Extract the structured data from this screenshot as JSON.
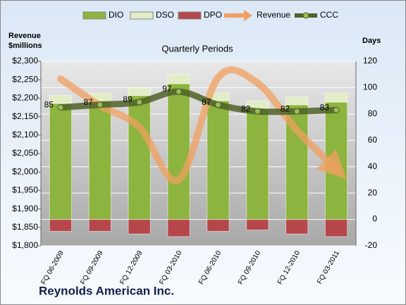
{
  "chart_data": {
    "type": "bar",
    "title": "Quarterly Periods",
    "company": "Reynolds American Inc.",
    "y_label": "Revenue $millions",
    "y2_label": "Days",
    "categories": [
      "FQ 06-2009",
      "FQ 09-2009",
      "FQ 12-2009",
      "FQ 03-2010",
      "FQ 06-2010",
      "FQ 09-2010",
      "FQ 12-2010",
      "FQ 03-2011"
    ],
    "series": [
      {
        "name": "DIO",
        "type": "bar",
        "axis": "y2",
        "color": "#8db43e",
        "values": [
          88,
          90,
          94,
          103,
          90,
          84,
          87,
          89
        ]
      },
      {
        "name": "DSO",
        "type": "bar",
        "axis": "y2",
        "color": "#e2edc6",
        "values": [
          6,
          6,
          6,
          7,
          6,
          6,
          6,
          7
        ]
      },
      {
        "name": "DPO",
        "type": "bar",
        "axis": "y2",
        "color": "#b5474b",
        "values": [
          -9,
          -9,
          -11,
          -13,
          -9,
          -8,
          -11,
          -13
        ]
      },
      {
        "name": "Revenue",
        "type": "line",
        "color": "#f0a060",
        "values": [
          2252,
          2180,
          2122,
          1979,
          2256,
          2241,
          2113,
          2008
        ]
      },
      {
        "name": "CCC",
        "type": "line",
        "axis": "y2",
        "color": "#4f6228",
        "values": [
          85,
          87,
          89,
          97,
          87,
          82,
          82,
          83
        ]
      }
    ],
    "ylim": [
      1800,
      2300
    ],
    "yticks": [
      {
        "value": 1800,
        "label": "$1,800"
      },
      {
        "value": 1850,
        "label": "$1,850"
      },
      {
        "value": 1900,
        "label": "$1,900"
      },
      {
        "value": 1950,
        "label": "$1,950"
      },
      {
        "value": 2000,
        "label": "$2,000"
      },
      {
        "value": 2050,
        "label": "$2,050"
      },
      {
        "value": 2100,
        "label": "$2,100"
      },
      {
        "value": 2150,
        "label": "$2,150"
      },
      {
        "value": 2200,
        "label": "$2,200"
      },
      {
        "value": 2250,
        "label": "$2,250"
      },
      {
        "value": 2300,
        "label": "$2,300"
      }
    ],
    "y2lim": [
      -20,
      120
    ],
    "y2ticks": [
      -20,
      0,
      20,
      40,
      60,
      80,
      100,
      120
    ],
    "grid": true,
    "legend": "top"
  }
}
